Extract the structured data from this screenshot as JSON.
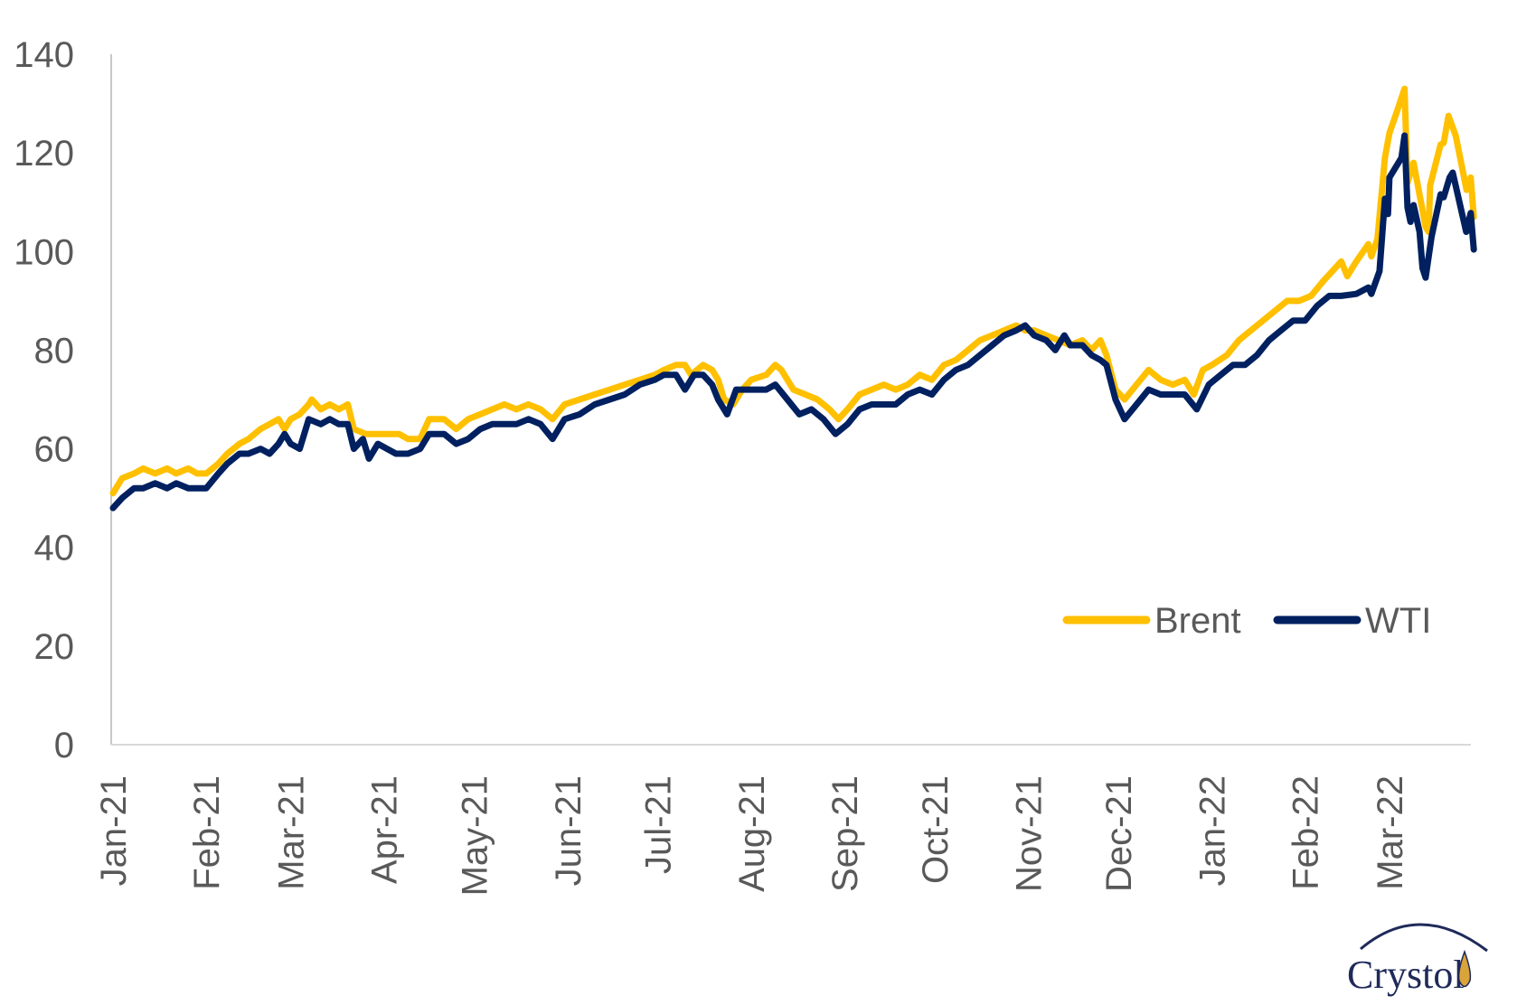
{
  "chart_data": {
    "type": "line",
    "title": "",
    "xlabel": "",
    "ylabel": "",
    "x_unit": "days since 2021-01-01",
    "x_range": [
      0,
      452
    ],
    "ylim": [
      0,
      140
    ],
    "yticks": [
      0,
      20,
      40,
      60,
      80,
      100,
      120,
      140
    ],
    "ytick_labels": [
      "0",
      "20",
      "40",
      "60",
      "80",
      "100",
      "120",
      "140"
    ],
    "xticks": [
      0,
      31,
      59,
      90,
      120,
      151,
      181,
      212,
      243,
      273,
      304,
      334,
      365,
      396,
      424
    ],
    "xtick_labels": [
      "Jan-21",
      "Feb-21",
      "Mar-21",
      "Apr-21",
      "May-21",
      "Jun-21",
      "Jul-21",
      "Aug-21",
      "Sep-21",
      "Oct-21",
      "Nov-21",
      "Dec-21",
      "Jan-22",
      "Feb-22",
      "Mar-22"
    ],
    "grid": false,
    "legend_position": "bottom-right",
    "series": [
      {
        "name": "Brent",
        "color": "#FFC000",
        "points": [
          [
            0,
            51
          ],
          [
            3,
            54
          ],
          [
            7,
            55
          ],
          [
            10,
            56
          ],
          [
            14,
            55
          ],
          [
            18,
            56
          ],
          [
            21,
            55
          ],
          [
            25,
            56
          ],
          [
            28,
            55
          ],
          [
            31,
            55
          ],
          [
            35,
            57
          ],
          [
            38,
            59
          ],
          [
            42,
            61
          ],
          [
            45,
            62
          ],
          [
            49,
            64
          ],
          [
            52,
            65
          ],
          [
            55,
            66
          ],
          [
            57,
            64
          ],
          [
            59,
            66
          ],
          [
            62,
            67
          ],
          [
            65,
            69
          ],
          [
            66,
            70
          ],
          [
            69,
            68
          ],
          [
            72,
            69
          ],
          [
            75,
            68
          ],
          [
            78,
            69
          ],
          [
            80,
            64
          ],
          [
            84,
            63
          ],
          [
            88,
            63
          ],
          [
            91,
            63
          ],
          [
            95,
            63
          ],
          [
            98,
            62
          ],
          [
            102,
            62
          ],
          [
            105,
            66
          ],
          [
            110,
            66
          ],
          [
            114,
            64
          ],
          [
            118,
            66
          ],
          [
            122,
            67
          ],
          [
            126,
            68
          ],
          [
            130,
            69
          ],
          [
            134,
            68
          ],
          [
            138,
            69
          ],
          [
            142,
            68
          ],
          [
            146,
            66
          ],
          [
            150,
            69
          ],
          [
            155,
            70
          ],
          [
            160,
            71
          ],
          [
            165,
            72
          ],
          [
            170,
            73
          ],
          [
            175,
            74
          ],
          [
            180,
            75
          ],
          [
            183,
            76
          ],
          [
            187,
            77
          ],
          [
            190,
            77
          ],
          [
            192,
            75
          ],
          [
            196,
            77
          ],
          [
            199,
            76
          ],
          [
            201,
            74
          ],
          [
            203,
            70
          ],
          [
            206,
            69
          ],
          [
            209,
            72
          ],
          [
            212,
            74
          ],
          [
            217,
            75
          ],
          [
            220,
            77
          ],
          [
            222,
            76
          ],
          [
            226,
            72
          ],
          [
            230,
            71
          ],
          [
            234,
            70
          ],
          [
            238,
            68
          ],
          [
            241,
            66
          ],
          [
            244,
            68
          ],
          [
            248,
            71
          ],
          [
            252,
            72
          ],
          [
            256,
            73
          ],
          [
            260,
            72
          ],
          [
            264,
            73
          ],
          [
            268,
            75
          ],
          [
            272,
            74
          ],
          [
            276,
            77
          ],
          [
            280,
            78
          ],
          [
            284,
            80
          ],
          [
            288,
            82
          ],
          [
            292,
            83
          ],
          [
            296,
            84
          ],
          [
            300,
            85
          ],
          [
            303,
            84
          ],
          [
            306,
            84
          ],
          [
            310,
            83
          ],
          [
            314,
            82
          ],
          [
            318,
            81
          ],
          [
            322,
            82
          ],
          [
            325,
            80
          ],
          [
            328,
            82
          ],
          [
            330,
            79
          ],
          [
            333,
            72
          ],
          [
            336,
            70
          ],
          [
            340,
            73
          ],
          [
            344,
            76
          ],
          [
            348,
            74
          ],
          [
            352,
            73
          ],
          [
            356,
            74
          ],
          [
            359,
            71
          ],
          [
            362,
            76
          ],
          [
            365,
            77
          ],
          [
            370,
            79
          ],
          [
            374,
            82
          ],
          [
            378,
            84
          ],
          [
            382,
            86
          ],
          [
            386,
            88
          ],
          [
            390,
            90
          ],
          [
            394,
            90
          ],
          [
            398,
            91
          ],
          [
            402,
            94
          ],
          [
            405,
            96
          ],
          [
            408,
            98
          ],
          [
            410,
            95
          ],
          [
            413,
            98
          ],
          [
            417,
            101.5
          ],
          [
            418,
            99
          ],
          [
            420,
            102.5
          ],
          [
            422.5,
            119
          ],
          [
            424,
            124
          ],
          [
            426.6,
            128.6
          ],
          [
            429,
            133
          ],
          [
            430,
            114
          ],
          [
            432,
            118
          ],
          [
            436,
            105
          ],
          [
            437,
            104
          ],
          [
            437.5,
            113.4
          ],
          [
            441,
            121.7
          ],
          [
            442,
            122
          ],
          [
            443.6,
            127.5
          ],
          [
            446,
            123.5
          ],
          [
            449.6,
            112.5
          ],
          [
            451,
            115
          ],
          [
            452,
            107
          ]
        ]
      },
      {
        "name": "WTI",
        "color": "#002060",
        "points": [
          [
            0,
            48
          ],
          [
            3,
            50
          ],
          [
            7,
            52
          ],
          [
            10,
            52
          ],
          [
            14,
            53
          ],
          [
            18,
            52
          ],
          [
            21,
            53
          ],
          [
            25,
            52
          ],
          [
            28,
            52
          ],
          [
            31,
            52
          ],
          [
            35,
            55
          ],
          [
            38,
            57
          ],
          [
            42,
            59
          ],
          [
            45,
            59
          ],
          [
            49,
            60
          ],
          [
            52,
            59
          ],
          [
            55,
            61
          ],
          [
            57,
            63
          ],
          [
            59,
            61
          ],
          [
            62,
            60
          ],
          [
            65,
            66
          ],
          [
            69,
            65
          ],
          [
            72,
            66
          ],
          [
            75,
            65
          ],
          [
            78,
            65
          ],
          [
            80,
            60
          ],
          [
            83,
            62
          ],
          [
            85,
            58
          ],
          [
            88,
            61
          ],
          [
            91,
            60
          ],
          [
            94,
            59
          ],
          [
            98,
            59
          ],
          [
            102,
            60
          ],
          [
            105,
            63
          ],
          [
            110,
            63
          ],
          [
            114,
            61
          ],
          [
            118,
            62
          ],
          [
            122,
            64
          ],
          [
            126,
            65
          ],
          [
            130,
            65
          ],
          [
            134,
            65
          ],
          [
            138,
            66
          ],
          [
            142,
            65
          ],
          [
            146,
            62
          ],
          [
            150,
            66
          ],
          [
            155,
            67
          ],
          [
            160,
            69
          ],
          [
            165,
            70
          ],
          [
            170,
            71
          ],
          [
            175,
            73
          ],
          [
            180,
            74
          ],
          [
            183,
            75
          ],
          [
            187,
            75
          ],
          [
            190,
            72
          ],
          [
            193,
            75
          ],
          [
            196,
            75
          ],
          [
            199,
            73
          ],
          [
            201,
            70
          ],
          [
            204,
            67
          ],
          [
            207,
            72
          ],
          [
            212,
            72
          ],
          [
            217,
            72
          ],
          [
            220,
            73
          ],
          [
            224,
            70
          ],
          [
            228,
            67
          ],
          [
            232,
            68
          ],
          [
            236,
            66
          ],
          [
            240,
            63
          ],
          [
            244,
            65
          ],
          [
            248,
            68
          ],
          [
            252,
            69
          ],
          [
            256,
            69
          ],
          [
            260,
            69
          ],
          [
            264,
            71
          ],
          [
            268,
            72
          ],
          [
            272,
            71
          ],
          [
            276,
            74
          ],
          [
            280,
            76
          ],
          [
            284,
            77
          ],
          [
            288,
            79
          ],
          [
            292,
            81
          ],
          [
            296,
            83
          ],
          [
            300,
            84
          ],
          [
            303,
            85
          ],
          [
            306,
            83
          ],
          [
            310,
            82
          ],
          [
            313,
            80
          ],
          [
            316,
            83
          ],
          [
            318,
            81
          ],
          [
            322,
            81
          ],
          [
            325,
            79
          ],
          [
            328,
            78
          ],
          [
            330,
            77
          ],
          [
            333,
            70
          ],
          [
            336,
            66
          ],
          [
            340,
            69
          ],
          [
            344,
            72
          ],
          [
            348,
            71
          ],
          [
            352,
            71
          ],
          [
            356,
            71
          ],
          [
            360,
            68
          ],
          [
            364,
            73
          ],
          [
            368,
            75
          ],
          [
            372,
            77
          ],
          [
            376,
            77
          ],
          [
            380,
            79
          ],
          [
            384,
            82
          ],
          [
            388,
            84
          ],
          [
            392,
            86
          ],
          [
            396,
            86
          ],
          [
            400,
            89
          ],
          [
            404,
            91
          ],
          [
            408,
            91
          ],
          [
            413,
            91.4
          ],
          [
            417,
            92.7
          ],
          [
            418,
            91.4
          ],
          [
            420.7,
            96
          ],
          [
            422.5,
            110.7
          ],
          [
            423.5,
            107.6
          ],
          [
            424,
            115
          ],
          [
            428,
            119
          ],
          [
            429,
            123.5
          ],
          [
            430,
            108.9
          ],
          [
            431,
            106
          ],
          [
            432,
            109.4
          ],
          [
            434,
            104
          ],
          [
            435,
            96.6
          ],
          [
            436,
            94.7
          ],
          [
            438,
            103
          ],
          [
            441,
            111.6
          ],
          [
            442,
            111
          ],
          [
            444,
            115
          ],
          [
            445,
            116
          ],
          [
            449.5,
            104
          ],
          [
            451,
            107.8
          ],
          [
            452,
            100.4
          ]
        ]
      }
    ]
  },
  "logo": {
    "text": "Crystol"
  }
}
